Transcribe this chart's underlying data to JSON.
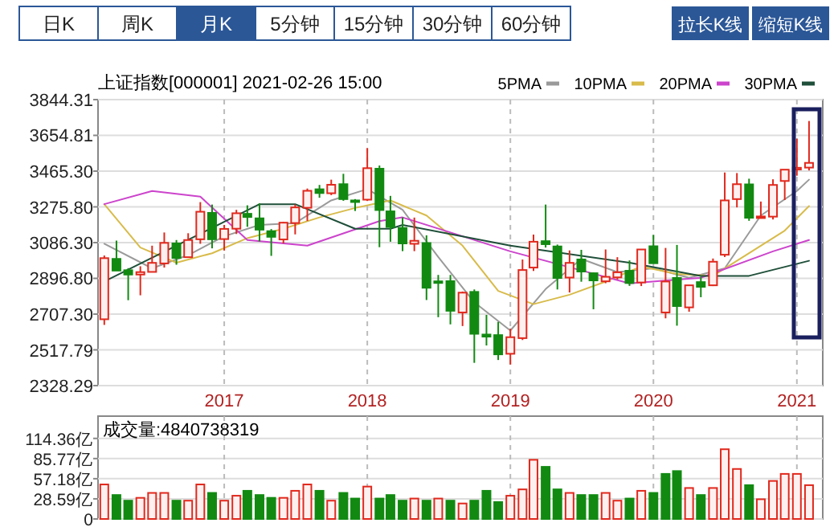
{
  "chart_data": [
    {
      "type": "candlestick",
      "title": "上证指数[000001] 2021-02-26 15:00",
      "legend": "top right",
      "grid": true,
      "annotations": [
        "日K",
        "周K",
        "月K",
        "5分钟",
        "15分钟",
        "30分钟",
        "60分钟",
        "拉长K线",
        "缩短K线"
      ],
      "x": [
        "2016-03",
        "2016-04",
        "2016-05",
        "2016-06",
        "2016-07",
        "2016-08",
        "2016-09",
        "2016-10",
        "2016-11",
        "2016-12",
        "2017-01",
        "2017-02",
        "2017-03",
        "2017-04",
        "2017-05",
        "2017-06",
        "2017-07",
        "2017-08",
        "2017-09",
        "2017-10",
        "2017-11",
        "2017-12",
        "2018-01",
        "2018-02",
        "2018-03",
        "2018-04",
        "2018-05",
        "2018-06",
        "2018-07",
        "2018-08",
        "2018-09",
        "2018-10",
        "2018-11",
        "2018-12",
        "2019-01",
        "2019-02",
        "2019-03",
        "2019-04",
        "2019-05",
        "2019-06",
        "2019-07",
        "2019-08",
        "2019-09",
        "2019-10",
        "2019-11",
        "2019-12",
        "2020-01",
        "2020-02",
        "2020-03",
        "2020-04",
        "2020-05",
        "2020-06",
        "2020-07",
        "2020-08",
        "2020-09",
        "2020-10",
        "2020-11",
        "2020-12",
        "2021-01",
        "2021-02"
      ],
      "ohlc": [
        [
          2680,
          3018,
          2650,
          3004
        ],
        [
          3000,
          3097,
          2938,
          2938
        ],
        [
          2940,
          2951,
          2781,
          2917
        ],
        [
          2917,
          2961,
          2807,
          2930
        ],
        [
          2931,
          3070,
          2929,
          2979
        ],
        [
          2976,
          3140,
          2954,
          3085
        ],
        [
          3082,
          3100,
          2969,
          3005
        ],
        [
          3009,
          3136,
          3008,
          3100
        ],
        [
          3104,
          3301,
          3080,
          3250
        ],
        [
          3244,
          3288,
          3056,
          3104
        ],
        [
          3105,
          3180,
          3044,
          3159
        ],
        [
          3160,
          3260,
          3132,
          3242
        ],
        [
          3239,
          3284,
          3170,
          3222
        ],
        [
          3215,
          3295,
          3092,
          3155
        ],
        [
          3147,
          3158,
          3016,
          3117
        ],
        [
          3103,
          3195,
          3082,
          3192
        ],
        [
          3190,
          3288,
          3130,
          3273
        ],
        [
          3271,
          3373,
          3201,
          3361
        ],
        [
          3369,
          3392,
          3324,
          3349
        ],
        [
          3348,
          3420,
          3338,
          3393
        ],
        [
          3396,
          3451,
          3308,
          3317
        ],
        [
          3310,
          3317,
          3254,
          3307
        ],
        [
          3314,
          3587,
          3307,
          3481
        ],
        [
          3478,
          3495,
          3062,
          3259
        ],
        [
          3252,
          3334,
          3091,
          3169
        ],
        [
          3164,
          3220,
          3041,
          3082
        ],
        [
          3080,
          3219,
          3041,
          3096
        ],
        [
          3084,
          3125,
          2782,
          2847
        ],
        [
          2881,
          2915,
          2691,
          2876
        ],
        [
          2882,
          2915,
          2653,
          2725
        ],
        [
          2716,
          2827,
          2644,
          2821
        ],
        [
          2825,
          2838,
          2449,
          2603
        ],
        [
          2599,
          2703,
          2541,
          2588
        ],
        [
          2596,
          2666,
          2464,
          2494
        ],
        [
          2497,
          2630,
          2440,
          2585
        ],
        [
          2580,
          2997,
          2570,
          2941
        ],
        [
          2954,
          3129,
          2936,
          3091
        ],
        [
          3094,
          3288,
          3060,
          3078
        ],
        [
          3066,
          3076,
          2838,
          2899
        ],
        [
          2901,
          3045,
          2822,
          2979
        ],
        [
          2997,
          3048,
          2879,
          2933
        ],
        [
          2924,
          2927,
          2733,
          2886
        ],
        [
          2881,
          3050,
          2871,
          2905
        ],
        [
          2902,
          3009,
          2891,
          2929
        ],
        [
          2937,
          2992,
          2857,
          2872
        ],
        [
          2875,
          3052,
          2856,
          3050
        ],
        [
          3067,
          3127,
          2977,
          2977
        ],
        [
          2716,
          3058,
          2685,
          2880
        ],
        [
          2899,
          3074,
          2646,
          2750
        ],
        [
          2743,
          2861,
          2720,
          2860
        ],
        [
          2877,
          2905,
          2797,
          2852
        ],
        [
          2860,
          3002,
          2856,
          2985
        ],
        [
          3022,
          3458,
          3010,
          3310
        ],
        [
          3317,
          3455,
          3273,
          3396
        ],
        [
          3395,
          3425,
          3202,
          3218
        ],
        [
          3217,
          3304,
          3214,
          3225
        ],
        [
          3224,
          3422,
          3209,
          3392
        ],
        [
          3413,
          3474,
          3312,
          3473
        ],
        [
          3474,
          3637,
          3441,
          3483
        ],
        [
          3484,
          3731,
          3469,
          3509
        ]
      ],
      "colors": [
        "#e0291d",
        "#128a12",
        "#128a12",
        "#e0291d",
        "#e0291d",
        "#e0291d",
        "#128a12",
        "#e0291d",
        "#e0291d",
        "#128a12",
        "#e0291d",
        "#e0291d",
        "#128a12",
        "#128a12",
        "#128a12",
        "#e0291d",
        "#e0291d",
        "#e0291d",
        "#128a12",
        "#e0291d",
        "#128a12",
        "#128a12",
        "#e0291d",
        "#128a12",
        "#128a12",
        "#128a12",
        "#e0291d",
        "#128a12",
        "#128a12",
        "#128a12",
        "#e0291d",
        "#128a12",
        "#128a12",
        "#128a12",
        "#e0291d",
        "#e0291d",
        "#e0291d",
        "#128a12",
        "#128a12",
        "#e0291d",
        "#128a12",
        "#128a12",
        "#e0291d",
        "#e0291d",
        "#128a12",
        "#e0291d",
        "#128a12",
        "#e0291d",
        "#128a12",
        "#e0291d",
        "#128a12",
        "#e0291d",
        "#e0291d",
        "#e0291d",
        "#128a12",
        "#e0291d",
        "#e0291d",
        "#e0291d",
        "#e0291d",
        "#e0291d"
      ],
      "series": [
        {
          "name": "5PMA",
          "type": "line",
          "color": "#9a9a9a",
          "x": [
            "2016-03",
            "2016-07",
            "2016-10",
            "2017-01",
            "2017-04",
            "2017-07",
            "2017-10",
            "2018-01",
            "2018-04",
            "2018-07",
            "2018-10",
            "2019-01",
            "2019-04",
            "2019-07",
            "2019-10",
            "2020-01",
            "2020-04",
            "2020-07",
            "2020-10",
            "2021-01",
            "2021-02"
          ],
          "values": [
            3080,
            2950,
            3020,
            3120,
            3180,
            3190,
            3310,
            3370,
            3260,
            3010,
            2770,
            2620,
            2840,
            3000,
            2930,
            2950,
            2900,
            2950,
            3230,
            3360,
            3420
          ]
        },
        {
          "name": "10PMA",
          "type": "line",
          "color": "#d8bb4a",
          "x": [
            "2016-03",
            "2016-06",
            "2016-09",
            "2016-12",
            "2017-03",
            "2017-06",
            "2017-09",
            "2017-12",
            "2018-03",
            "2018-06",
            "2018-09",
            "2018-12",
            "2019-03",
            "2019-06",
            "2019-09",
            "2019-12",
            "2020-03",
            "2020-06",
            "2020-09",
            "2020-12",
            "2021-02"
          ],
          "values": [
            3290,
            3060,
            2980,
            3030,
            3110,
            3160,
            3220,
            3270,
            3310,
            3230,
            3070,
            2830,
            2760,
            2810,
            2880,
            2960,
            2920,
            2910,
            3030,
            3150,
            3280
          ]
        },
        {
          "name": "20PMA",
          "type": "line",
          "color": "#cc44cc",
          "x": [
            "2016-03",
            "2016-07",
            "2016-11",
            "2017-03",
            "2017-08",
            "2018-02",
            "2018-04",
            "2019-01",
            "2019-11",
            "2020-05",
            "2020-11",
            "2021-02"
          ],
          "values": [
            3290,
            3360,
            3330,
            3100,
            3070,
            3200,
            3220,
            3040,
            2870,
            2900,
            3040,
            3100
          ]
        },
        {
          "name": "30PMA",
          "type": "line",
          "color": "#1f4f3a",
          "x": [
            "2016-03",
            "2017-04",
            "2017-07",
            "2017-12",
            "2018-03",
            "2018-04",
            "2019-01",
            "2019-11",
            "2020-05",
            "2020-09",
            "2021-02"
          ],
          "values": [
            2880,
            3290,
            3290,
            3160,
            3160,
            3180,
            3070,
            2980,
            2910,
            2910,
            2990
          ]
        }
      ],
      "xlim": [
        "2016-02-14",
        "2021-03-08"
      ],
      "xticks": [
        {
          "value": "2017-01",
          "label": "2017"
        },
        {
          "value": "2018-01",
          "label": "2018"
        },
        {
          "value": "2019-01",
          "label": "2019"
        },
        {
          "value": "2020-01",
          "label": "2020"
        },
        {
          "value": "2021-01",
          "label": "2021"
        }
      ],
      "ylim": [
        2328.29,
        3844.31
      ],
      "yticks": [
        2328.29,
        2517.79,
        {
          "value": 2707.3,
          "label": "2707.30"
        },
        {
          "value": 2896.8,
          "label": "2896.80"
        },
        {
          "value": 3086.3,
          "label": "3086.30"
        },
        {
          "value": 3275.8,
          "label": "3275.80"
        },
        {
          "value": 3465.3,
          "label": "3465.30"
        },
        3654.81,
        3844.31
      ]
    },
    {
      "type": "bar",
      "grid": true,
      "tick_labels": "y",
      "annotations": [
        "成交量:4840738319"
      ],
      "x": [
        "2016-03",
        "2016-04",
        "2016-05",
        "2016-06",
        "2016-07",
        "2016-08",
        "2016-09",
        "2016-10",
        "2016-11",
        "2016-12",
        "2017-01",
        "2017-02",
        "2017-03",
        "2017-04",
        "2017-05",
        "2017-06",
        "2017-07",
        "2017-08",
        "2017-09",
        "2017-10",
        "2017-11",
        "2017-12",
        "2018-01",
        "2018-02",
        "2018-03",
        "2018-04",
        "2018-05",
        "2018-06",
        "2018-07",
        "2018-08",
        "2018-09",
        "2018-10",
        "2018-11",
        "2018-12",
        "2019-01",
        "2019-02",
        "2019-03",
        "2019-04",
        "2019-05",
        "2019-06",
        "2019-07",
        "2019-08",
        "2019-09",
        "2019-10",
        "2019-11",
        "2019-12",
        "2020-01",
        "2020-02",
        "2020-03",
        "2020-04",
        "2020-05",
        "2020-06",
        "2020-07",
        "2020-08",
        "2020-09",
        "2020-10",
        "2020-11",
        "2020-12",
        "2021-01",
        "2021-02"
      ],
      "values": [
        49,
        34,
        26,
        30,
        37,
        37,
        26,
        26,
        49,
        37,
        26,
        33,
        40,
        34,
        30,
        30,
        40,
        49,
        40,
        26,
        37,
        29,
        46,
        29,
        34,
        26,
        29,
        26,
        29,
        26,
        22,
        26,
        40,
        24,
        33,
        42,
        84,
        74,
        42,
        37,
        34,
        34,
        37,
        26,
        29,
        40,
        37,
        64,
        68,
        44,
        34,
        44,
        99,
        71,
        48,
        28,
        54,
        64,
        64,
        48
      ],
      "colors": [
        "#e0291d",
        "#128a12",
        "#128a12",
        "#e0291d",
        "#e0291d",
        "#e0291d",
        "#128a12",
        "#e0291d",
        "#e0291d",
        "#128a12",
        "#e0291d",
        "#e0291d",
        "#128a12",
        "#128a12",
        "#128a12",
        "#e0291d",
        "#e0291d",
        "#e0291d",
        "#128a12",
        "#e0291d",
        "#128a12",
        "#128a12",
        "#e0291d",
        "#128a12",
        "#128a12",
        "#128a12",
        "#e0291d",
        "#128a12",
        "#e0291d",
        "#128a12",
        "#e0291d",
        "#128a12",
        "#128a12",
        "#128a12",
        "#e0291d",
        "#e0291d",
        "#e0291d",
        "#128a12",
        "#128a12",
        "#e0291d",
        "#128a12",
        "#128a12",
        "#e0291d",
        "#e0291d",
        "#128a12",
        "#e0291d",
        "#128a12",
        "#128a12",
        "#128a12",
        "#e0291d",
        "#128a12",
        "#e0291d",
        "#e0291d",
        "#e0291d",
        "#128a12",
        "#e0291d",
        "#e0291d",
        "#e0291d",
        "#e0291d",
        "#e0291d"
      ],
      "xlim": [
        "2016-02-14",
        "2021-03-08"
      ],
      "xticks": [
        {
          "value": "2017-01",
          "label": null
        },
        {
          "value": "2018-01",
          "label": null
        },
        {
          "value": "2019-01",
          "label": null
        },
        {
          "value": "2020-01",
          "label": null
        },
        {
          "value": "2021-01",
          "label": null
        }
      ],
      "ylim": [
        0,
        146
      ],
      "yticks": [
        0,
        {
          "value": 28.59,
          "label": "28.59亿"
        },
        {
          "value": 57.18,
          "label": "57.18亿"
        },
        {
          "value": 85.77,
          "label": "85.77亿"
        },
        {
          "value": 114.36,
          "label": "114.36亿"
        }
      ]
    }
  ]
}
